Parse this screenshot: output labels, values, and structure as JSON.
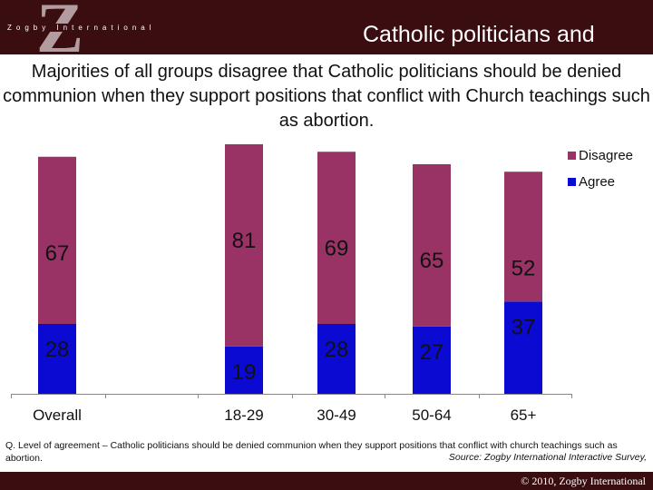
{
  "header": {
    "logo_letter": "Z",
    "logo_text": "Zogby International",
    "slide_title": "Catholic politicians and communion"
  },
  "headline": "Majorities of all groups disagree that Catholic politicians should be denied communion when they support positions that conflict with Church teachings such as abortion.",
  "chart_data": {
    "type": "bar",
    "stacked": true,
    "categories": [
      "Overall",
      "18-29",
      "30-49",
      "50-64",
      "65+"
    ],
    "series": [
      {
        "name": "Agree",
        "values": [
          28,
          19,
          28,
          27,
          37
        ],
        "color": "#0a0ad2"
      },
      {
        "name": "Disagree",
        "values": [
          67,
          81,
          69,
          65,
          52
        ],
        "color": "#993366"
      }
    ],
    "legend_position": "top-right",
    "ylim": [
      0,
      100
    ],
    "title": "",
    "xlabel": "",
    "ylabel": ""
  },
  "footnote": "Q. Level of agreement – Catholic politicians should be denied communion when they support positions that conflict with church teachings such as abortion.",
  "source": "Source: Zogby International Interactive Survey,",
  "copyright": "© 2010, Zogby International"
}
